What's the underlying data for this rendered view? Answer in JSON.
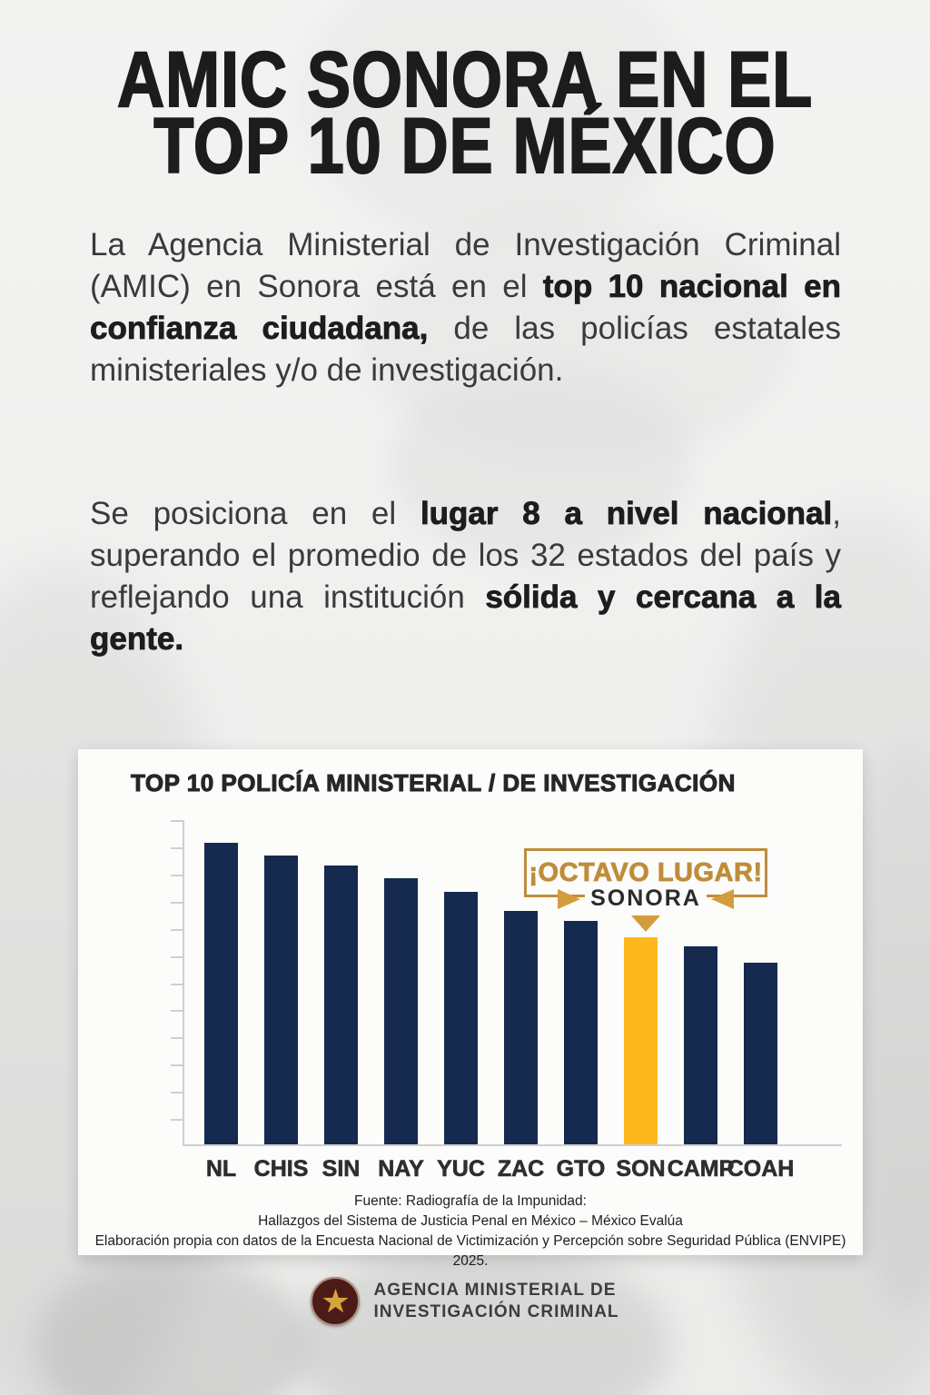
{
  "header": {
    "title_line1": "AMIC SONORA EN EL",
    "title_line2": "TOP 10 DE MÉXICO"
  },
  "body": {
    "p1_run1": "La Agencia Ministerial de Investigación Criminal (AMIC) en Sonora está en el ",
    "p1_bold1": "top 10 nacional en confianza ciudadana,",
    "p1_run2": " de las policías estatales ministeriales y/o de investigación.",
    "p2_run1": "Se posiciona en el ",
    "p2_bold1": "lugar 8 a nivel nacional",
    "p2_run2": ", superando el promedio de los 32 estados del país y reflejando una institución ",
    "p2_bold2": "sólida y cercana a la gente."
  },
  "chart_card": {
    "title": "TOP 10 POLICÍA MINISTERIAL / DE INVESTIGACIÓN",
    "badge": {
      "headline": "¡OCTAVO LUGAR!",
      "state_label": "SONORA"
    },
    "source_line1": "Fuente: Radiografía de la Impunidad:",
    "source_line2": "Hallazgos del Sistema de Justicia Penal en México – México Evalúa",
    "source_line3": "Elaboración propia con datos de la Encuesta Nacional de Victimización y Percepción sobre Seguridad Pública (ENVIPE) 2025."
  },
  "chart_data": {
    "type": "bar",
    "title": "TOP 10 POLICÍA MINISTERIAL / DE INVESTIGACIÓN",
    "categories": [
      "NL",
      "CHIS",
      "SIN",
      "NAY",
      "YUC",
      "ZAC",
      "GTO",
      "SON",
      "CAMP",
      "COAH"
    ],
    "values": [
      93,
      89,
      86,
      82,
      78,
      72,
      69,
      64,
      61,
      56
    ],
    "value_note": "y-axis has tick marks but no numeric labels; values estimated as percent of plot height",
    "highlight_category": "SON",
    "highlight_rank": 8,
    "bar_color": "#16294e",
    "highlight_color": "#ffb81c",
    "axis": {
      "y_ticks": 12,
      "y_labels_shown": false,
      "grid": false
    },
    "annotation": {
      "text": "¡OCTAVO LUGAR!",
      "sub_text": "SONORA",
      "target": "SON"
    },
    "legend": "none"
  },
  "footer": {
    "org_line1": "AGENCIA MINISTERIAL DE",
    "org_line2": "INVESTIGACIÓN CRIMINAL",
    "logo": "amic-star-badge"
  },
  "colors": {
    "navy_bar": "#16294e",
    "gold_bar": "#ffb81c",
    "badge_gold": "#bf8d3a",
    "arrow_gold": "#d49c3d",
    "text_dark": "#1d1d1d",
    "card_bg": "#fcfcfb",
    "page_bg": "#efeeec"
  }
}
